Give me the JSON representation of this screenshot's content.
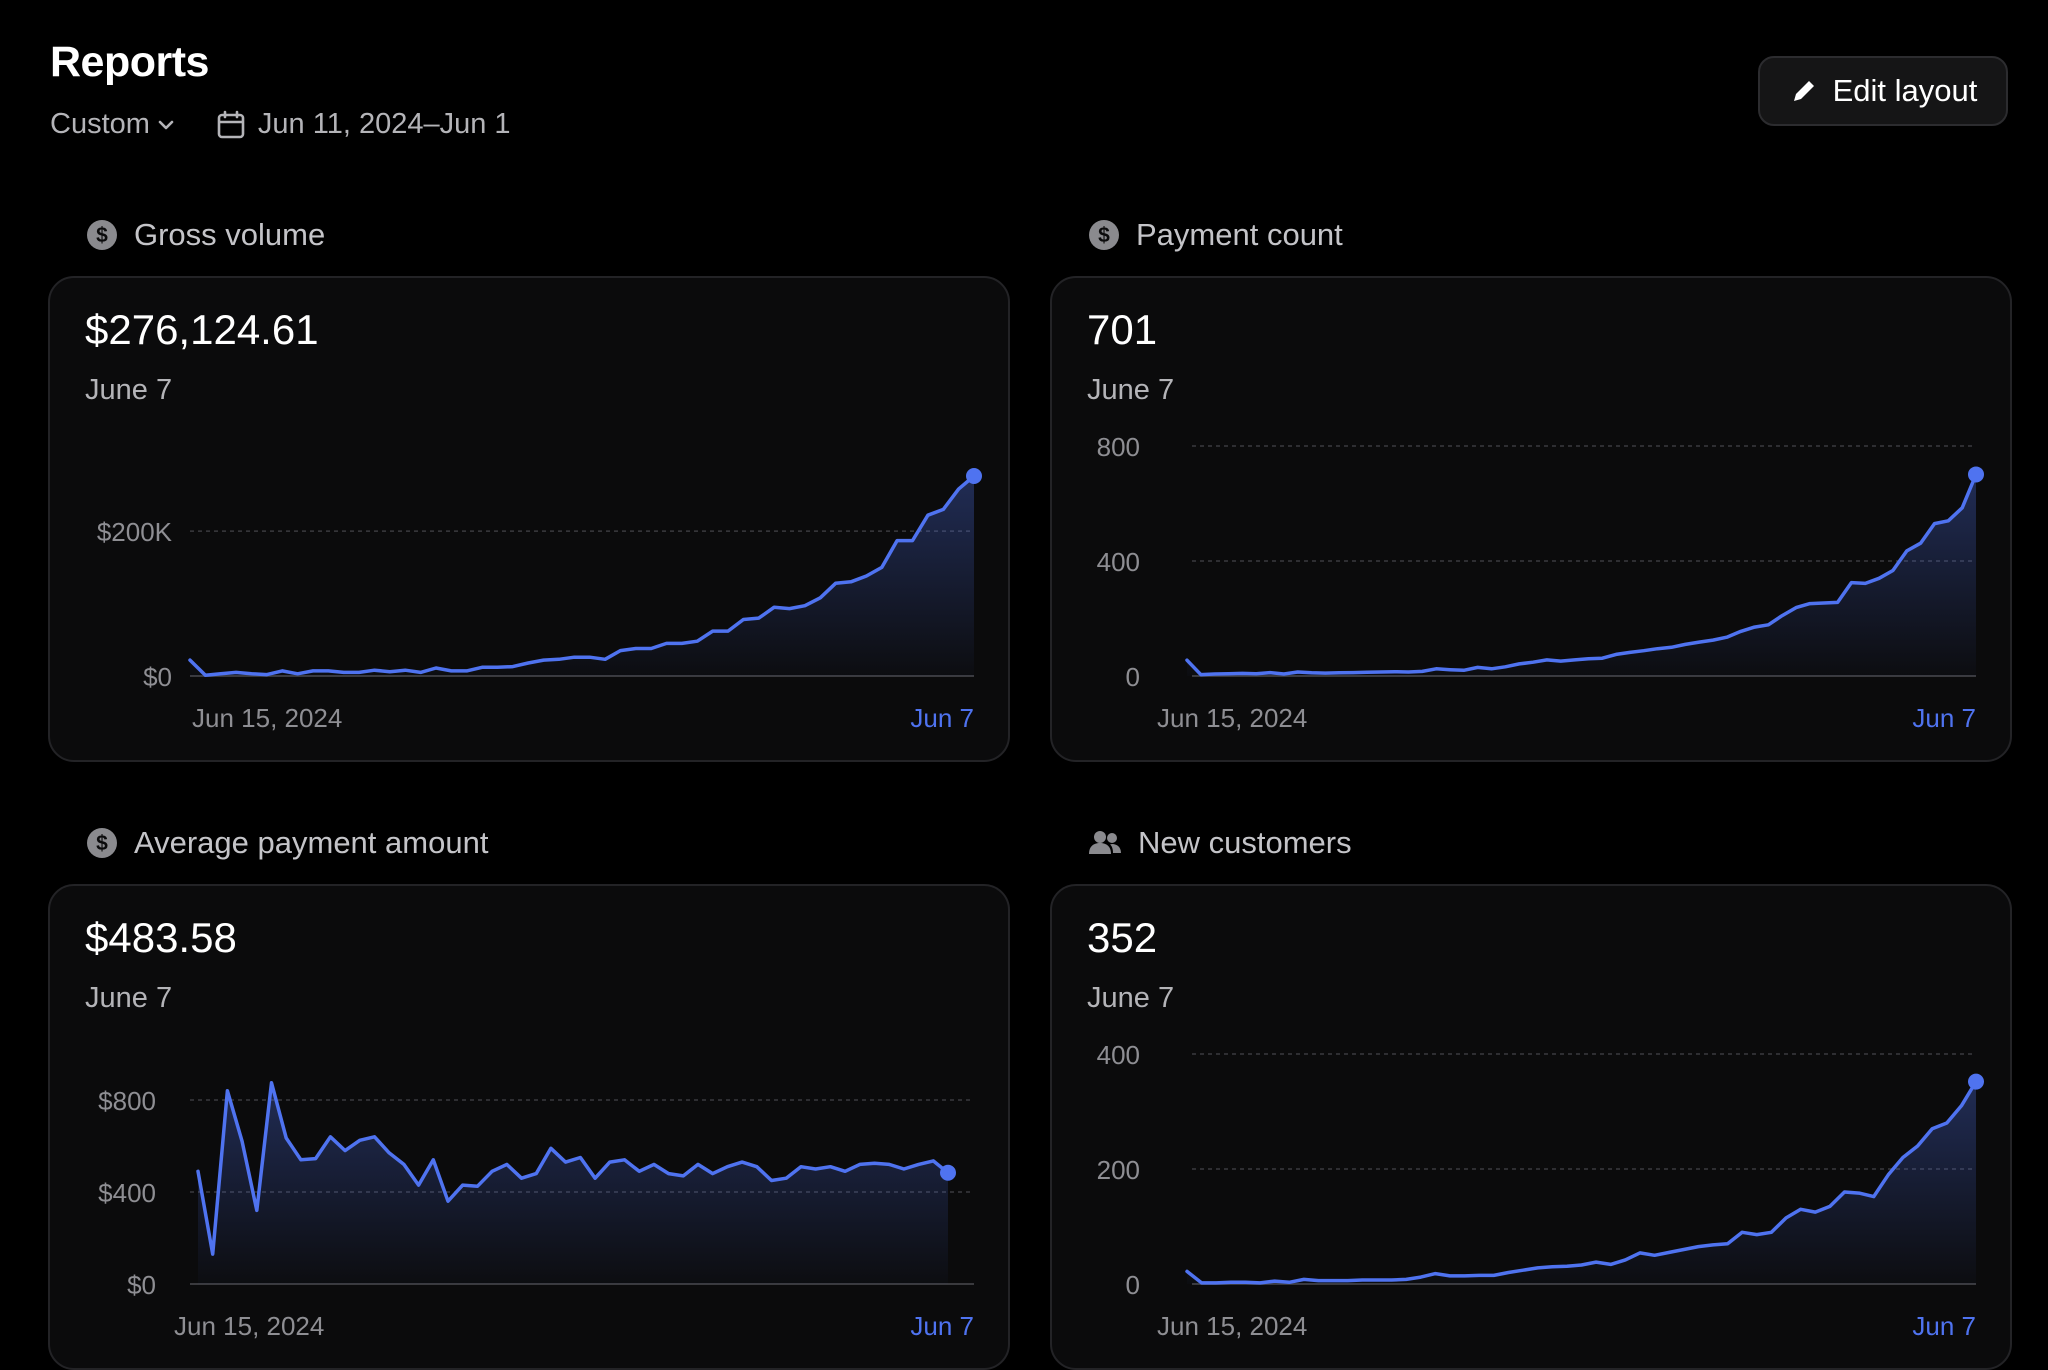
{
  "header": {
    "title": "Reports",
    "range_select": "Custom",
    "date_range": "Jun 11, 2024–Jun 1",
    "edit_button": "Edit layout"
  },
  "colors": {
    "accent": "#4f73f0",
    "background": "#000000",
    "card": "#0b0b0c"
  },
  "cards": [
    {
      "id": "gross-volume",
      "title": "Gross volume",
      "icon": "dollar-circle-icon",
      "value": "$276,124.61",
      "date": "June 7",
      "x_start_label": "Jun 15, 2024",
      "x_end_label": "Jun 7"
    },
    {
      "id": "payment-count",
      "title": "Payment count",
      "icon": "dollar-circle-icon",
      "value": "701",
      "date": "June 7",
      "x_start_label": "Jun 15, 2024",
      "x_end_label": "Jun 7"
    },
    {
      "id": "average-payment-amount",
      "title": "Average payment amount",
      "icon": "dollar-circle-icon",
      "value": "$483.58",
      "date": "June 7",
      "x_start_label": "Jun 15, 2024",
      "x_end_label": "Jun 7"
    },
    {
      "id": "new-customers",
      "title": "New customers",
      "icon": "users-icon",
      "value": "352",
      "date": "June 7",
      "x_start_label": "Jun 15, 2024",
      "x_end_label": "Jun 7"
    }
  ],
  "chart_data": [
    {
      "type": "area",
      "title": "Gross volume",
      "y_ticks": [
        0,
        200000
      ],
      "y_tick_labels": [
        "$0",
        "$200K"
      ],
      "ylim": [
        0,
        276124.61
      ],
      "grid": true,
      "values": [
        22000,
        1000,
        3000,
        5000,
        3000,
        2000,
        7000,
        3000,
        7000,
        7000,
        5000,
        5000,
        8000,
        6000,
        8000,
        5000,
        11000,
        7000,
        7000,
        12000,
        12000,
        13000,
        18000,
        22000,
        23000,
        26000,
        26000,
        23000,
        35000,
        38000,
        38000,
        45000,
        45000,
        48000,
        62000,
        62000,
        78000,
        80000,
        95000,
        93000,
        97000,
        108000,
        128000,
        130000,
        138000,
        150000,
        187000,
        187000,
        222000,
        230000,
        258000,
        276124.61
      ]
    },
    {
      "type": "area",
      "title": "Payment count",
      "y_ticks": [
        0,
        400,
        800
      ],
      "y_tick_labels": [
        "0",
        "400",
        "800"
      ],
      "ylim": [
        0,
        800
      ],
      "grid": true,
      "values": [
        55,
        5,
        7,
        8,
        9,
        8,
        12,
        7,
        14,
        11,
        10,
        11,
        12,
        13,
        14,
        15,
        14,
        16,
        25,
        22,
        20,
        30,
        25,
        32,
        42,
        48,
        56,
        52,
        56,
        60,
        62,
        75,
        82,
        88,
        95,
        100,
        110,
        118,
        125,
        135,
        155,
        170,
        178,
        210,
        238,
        252,
        254,
        256,
        325,
        322,
        340,
        367,
        435,
        462,
        530,
        540,
        585,
        701
      ]
    },
    {
      "type": "area",
      "title": "Average payment amount",
      "y_ticks": [
        0,
        400,
        800
      ],
      "y_tick_labels": [
        "$0",
        "$400",
        "$800"
      ],
      "ylim": [
        0,
        800
      ],
      "grid": true,
      "values": [
        490,
        130,
        840,
        620,
        320,
        875,
        635,
        540,
        545,
        640,
        580,
        625,
        640,
        570,
        520,
        430,
        540,
        360,
        430,
        425,
        490,
        520,
        460,
        480,
        590,
        530,
        550,
        460,
        530,
        540,
        490,
        520,
        480,
        470,
        520,
        480,
        510,
        530,
        510,
        450,
        460,
        510,
        500,
        510,
        490,
        520,
        525,
        520,
        500,
        520,
        535,
        483.58
      ]
    },
    {
      "type": "area",
      "title": "New customers",
      "y_ticks": [
        0,
        200,
        400
      ],
      "y_tick_labels": [
        "0",
        "200",
        "400"
      ],
      "ylim": [
        0,
        400
      ],
      "grid": true,
      "values": [
        22,
        2,
        2,
        3,
        3,
        2,
        5,
        3,
        8,
        6,
        6,
        6,
        7,
        7,
        7,
        8,
        12,
        18,
        14,
        14,
        15,
        15,
        20,
        24,
        28,
        30,
        31,
        33,
        38,
        34,
        42,
        54,
        50,
        55,
        60,
        65,
        68,
        70,
        90,
        86,
        90,
        115,
        130,
        125,
        135,
        160,
        158,
        152,
        190,
        220,
        240,
        270,
        280,
        310,
        352
      ]
    }
  ]
}
